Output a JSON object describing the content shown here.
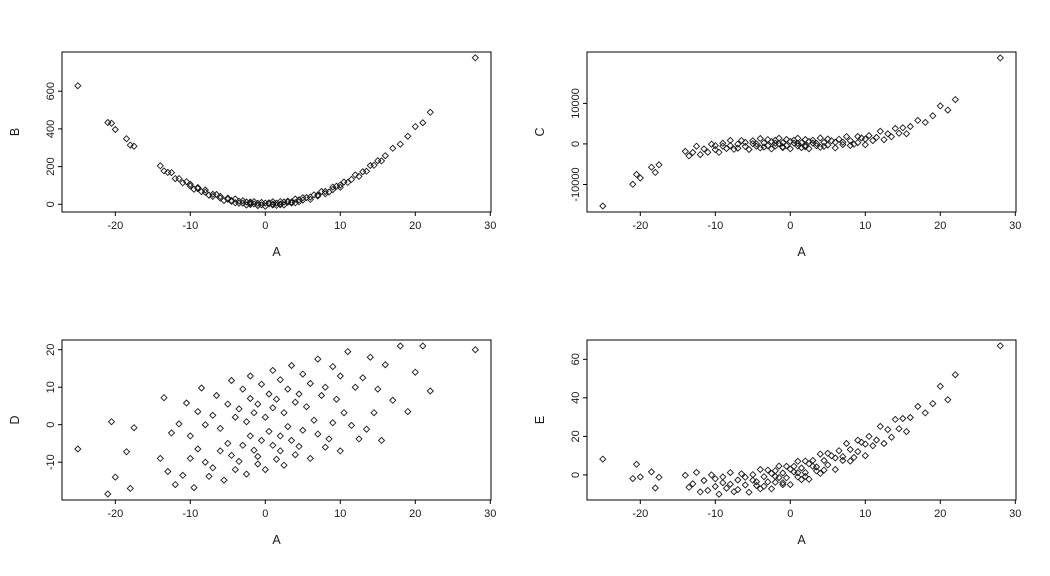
{
  "page": {
    "background": "#ffffff"
  },
  "chart_data": {
    "type": "scatter",
    "layout": "2x2 grid of base-R style scatterplots, all sharing x variable A",
    "marker": "open-diamond",
    "point_color": "#1a1a1a",
    "axis_color": "#000000",
    "grid": "off",
    "shared_x": {
      "label": "A",
      "values": [
        -25,
        -21,
        -20.5,
        -20,
        -18.5,
        -18,
        -17.5,
        -14,
        -13.5,
        -13,
        -12.5,
        -12,
        -11.5,
        -11,
        -10.5,
        -10,
        -10,
        -9.5,
        -9,
        -9,
        -8.5,
        -8,
        -8,
        -7.5,
        -7,
        -7,
        -6.5,
        -6,
        -6,
        -5.5,
        -5,
        -5,
        -4.5,
        -4.5,
        -4,
        -4,
        -3.5,
        -3.5,
        -3,
        -3,
        -2.5,
        -2.5,
        -2,
        -2,
        -2,
        -1.5,
        -1.5,
        -1,
        -1,
        -1,
        -0.5,
        -0.5,
        0,
        0,
        0.5,
        0.5,
        1,
        1,
        1,
        1.5,
        1.5,
        2,
        2,
        2,
        2.5,
        2.5,
        3,
        3,
        3.5,
        3.5,
        4,
        4,
        4.5,
        4.5,
        5,
        5,
        5.5,
        6,
        6,
        6.5,
        7,
        7,
        7.5,
        8,
        8,
        8.5,
        9,
        9,
        9.5,
        10,
        10,
        10.5,
        11,
        11.5,
        12,
        12.5,
        13,
        13.5,
        14,
        14.5,
        15,
        15.5,
        16,
        17,
        18,
        19,
        20,
        21,
        22,
        28
      ]
    },
    "panels": [
      {
        "xlabel": "A",
        "ylabel": "B",
        "xlim": [
          -27.1,
          30.1
        ],
        "ylim": [
          -41,
          808
        ],
        "x_ticks": [
          -20,
          -10,
          0,
          10,
          20,
          30
        ],
        "y_ticks": [
          0,
          200,
          400,
          600
        ],
        "relationship": "B is approximately A squared (parabola)",
        "values": [
          629,
          434,
          430,
          397,
          348,
          314,
          308,
          204,
          177,
          169,
          168,
          136,
          136,
          114,
          120,
          97,
          106,
          80,
          83,
          89,
          67,
          64,
          76,
          48,
          53,
          42,
          52,
          33,
          42,
          20,
          27,
          33,
          15,
          20,
          28,
          8,
          16,
          5,
          19,
          6,
          12,
          -4,
          6,
          12,
          -1,
          2,
          14,
          -7,
          5,
          -6,
          10,
          -3,
          6,
          -10,
          2,
          8,
          -4,
          1,
          13,
          -6,
          6,
          -3,
          14,
          1,
          12,
          -4,
          11,
          17,
          7,
          12,
          28,
          8,
          24,
          13,
          35,
          22,
          36,
          26,
          38,
          50,
          44,
          49,
          68,
          56,
          68,
          65,
          91,
          78,
          96,
          90,
          102,
          118,
          116,
          132,
          156,
          148,
          173,
          175,
          206,
          207,
          231,
          230,
          258,
          297,
          319,
          361,
          412,
          433,
          488,
          777
        ]
      },
      {
        "xlabel": "A",
        "ylabel": "C",
        "xlim": [
          -27.1,
          30.1
        ],
        "ylim": [
          -16800,
          22700
        ],
        "x_ticks": [
          -20,
          -10,
          0,
          10,
          20,
          30
        ],
        "y_ticks": [
          -10000,
          0,
          10000
        ],
        "relationship": "C is approximately A cubed (cubic S-curve)",
        "values": [
          -15325,
          -9961,
          -7515,
          -8400,
          -5732,
          -7032,
          -5159,
          -1844,
          -2960,
          -2097,
          -553,
          -2628,
          -1221,
          -2031,
          -58,
          -1400,
          -400,
          -2057,
          -529,
          171,
          -1114,
          -412,
          888,
          -1322,
          -43,
          -1043,
          825,
          -616,
          384,
          -1366,
          75,
          775,
          -591,
          9,
          1336,
          -964,
          257,
          -743,
          1073,
          -427,
          584,
          -1216,
          192,
          892,
          -508,
          97,
          1397,
          -901,
          299,
          -701,
          1100,
          -400,
          600,
          -1200,
          200,
          900,
          -499,
          101,
          1401,
          -897,
          303,
          -692,
          1108,
          -392,
          616,
          -1184,
          227,
          927,
          -457,
          143,
          1464,
          -836,
          391,
          -609,
          1225,
          -275,
          766,
          -984,
          416,
          1175,
          -157,
          443,
          1822,
          -388,
          812,
          -86,
          1829,
          329,
          1457,
          -200,
          1200,
          2058,
          831,
          1621,
          3128,
          1053,
          2497,
          1760,
          3844,
          2648,
          3975,
          2524,
          4296,
          5813,
          5332,
          6959,
          9400,
          8361,
          10948,
          21252
        ]
      },
      {
        "xlabel": "A",
        "ylabel": "D",
        "xlim": [
          -27.1,
          30.1
        ],
        "ylim": [
          -20.1,
          22.6
        ],
        "x_ticks": [
          -20,
          -10,
          0,
          10,
          20,
          30
        ],
        "y_ticks": [
          -10,
          0,
          10,
          20
        ],
        "relationship": "D is noisy positive linear trend in A",
        "values": [
          -6.5,
          -18.5,
          0.8,
          -14,
          -7.2,
          -17,
          -0.8,
          -9,
          7.2,
          -12.5,
          -2.2,
          -16,
          0.2,
          -13.5,
          5.8,
          -9,
          -3,
          -16.8,
          3.5,
          -6.5,
          9.8,
          -10,
          0,
          -13.8,
          2.5,
          -11.5,
          7.8,
          -7,
          -1,
          -14.8,
          5.5,
          -5,
          11.8,
          -8.2,
          2,
          -12,
          4.2,
          -9.8,
          9.5,
          -5.5,
          0.8,
          -13.2,
          7,
          -3,
          13,
          -6.8,
          3.2,
          -10.5,
          5.5,
          -8.5,
          10.8,
          -4.2,
          2,
          -12,
          8.2,
          -1.8,
          14.5,
          -5.5,
          4.5,
          -9.2,
          6.8,
          -7,
          12,
          -3,
          3.2,
          -10.8,
          9.5,
          -0.5,
          15.8,
          -4.2,
          6,
          -8,
          8.2,
          -5.8,
          13.5,
          -1.5,
          4.8,
          -9,
          11,
          1.2,
          17.5,
          -2.5,
          7.8,
          -6,
          10,
          -3.8,
          15.5,
          0.5,
          6.8,
          -7,
          13,
          3.2,
          19.5,
          -0.2,
          10,
          -3.8,
          12.5,
          -1.2,
          18,
          3.2,
          9.5,
          -4.2,
          16,
          6.5,
          21,
          3.5,
          14,
          21,
          9,
          20
        ]
      },
      {
        "xlabel": "A",
        "ylabel": "E",
        "xlim": [
          -27.1,
          30.1
        ],
        "ylim": [
          -13,
          70
        ],
        "x_ticks": [
          -20,
          -10,
          0,
          10,
          20,
          30
        ],
        "y_ticks": [
          0,
          20,
          40,
          60
        ],
        "relationship": "E rises steeply for positive A, flat-to-slightly-negative for negative A",
        "values": [
          8.2,
          -1.9,
          5.5,
          -1,
          1.6,
          -6.8,
          -1.2,
          -0.2,
          -6.4,
          -4.6,
          1.3,
          -8.8,
          -2.9,
          -8,
          0,
          -6,
          -2,
          -10,
          -4,
          -1,
          -6.9,
          -4.8,
          1.2,
          -8.7,
          -2.6,
          -7.6,
          0.6,
          -5.2,
          -1.2,
          -9,
          -2.8,
          0.2,
          -5.5,
          -3.5,
          2.8,
          -7.2,
          -0.9,
          -5.9,
          2.5,
          -3.6,
          0.8,
          -7.2,
          -0.8,
          2.2,
          -3.8,
          -1.4,
          4.6,
          -5,
          1,
          -4,
          4.5,
          -1.5,
          3,
          -5,
          1.5,
          4.5,
          -1,
          1.1,
          7.1,
          -2.4,
          3.6,
          -0.8,
          7.2,
          1.2,
          5.8,
          -2.2,
          4.5,
          7.5,
          2.1,
          4.1,
          10.8,
          0.8,
          7.5,
          2.5,
          11.2,
          5.2,
          10,
          2.8,
          8.8,
          12.6,
          7.5,
          9.5,
          16.3,
          7.2,
          13.2,
          9.1,
          18,
          12.1,
          17,
          10,
          16,
          20,
          15.1,
          18.1,
          25.2,
          16.3,
          23.5,
          19.6,
          28.8,
          24,
          29.3,
          22.5,
          29.8,
          35.5,
          32.2,
          37,
          46,
          39,
          52,
          67
        ]
      }
    ]
  }
}
